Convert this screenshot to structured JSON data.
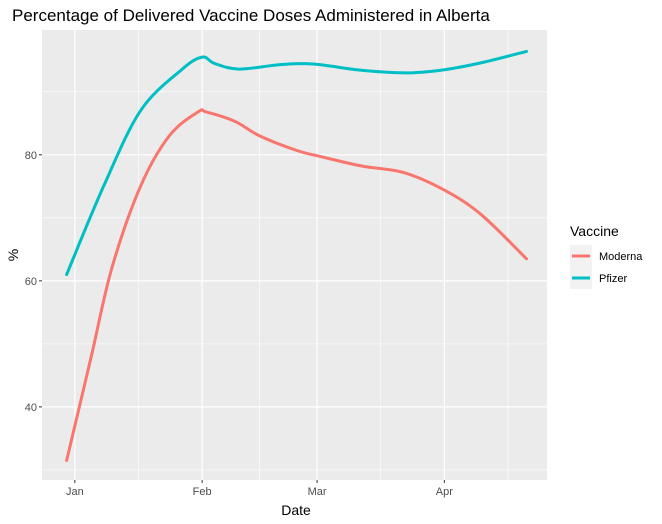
{
  "chart_data": {
    "type": "line",
    "title": "Percentage of Delivered Vaccine Doses Administered in Alberta",
    "xlabel": "Date",
    "ylabel": "%",
    "xlim": [
      "2020-12-24",
      "2021-04-26"
    ],
    "ylim": [
      28.4,
      99.8
    ],
    "x_ticks": [
      {
        "date": "2021-01-01",
        "label": "Jan"
      },
      {
        "date": "2021-02-01",
        "label": "Feb"
      },
      {
        "date": "2021-03-01",
        "label": "Mar"
      },
      {
        "date": "2021-04-01",
        "label": "Apr"
      }
    ],
    "y_ticks": [
      40,
      60,
      80
    ],
    "grid": true,
    "legend": {
      "title": "Vaccine",
      "position": "right"
    },
    "series": [
      {
        "name": "Moderna",
        "color": "#F8766D",
        "x": [
          "2020-12-30",
          "2021-01-05",
          "2021-01-10",
          "2021-01-17",
          "2021-01-24",
          "2021-01-31",
          "2021-02-02",
          "2021-02-09",
          "2021-02-15",
          "2021-02-24",
          "2021-03-02",
          "2021-03-12",
          "2021-03-22",
          "2021-04-01",
          "2021-04-10",
          "2021-04-21"
        ],
        "y": [
          31.5,
          48,
          62,
          75,
          83,
          86.8,
          86.8,
          85.3,
          83,
          80.7,
          79.7,
          78.2,
          77.2,
          74.4,
          70.5,
          63.5
        ]
      },
      {
        "name": "Pfizer",
        "color": "#00BFC4",
        "x": [
          "2020-12-30",
          "2021-01-08",
          "2021-01-17",
          "2021-01-27",
          "2021-02-01",
          "2021-02-04",
          "2021-02-10",
          "2021-02-20",
          "2021-02-28",
          "2021-03-12",
          "2021-03-23",
          "2021-04-01",
          "2021-04-10",
          "2021-04-21"
        ],
        "y": [
          61,
          75,
          87,
          93.5,
          95.5,
          94.5,
          93.6,
          94.3,
          94.4,
          93.4,
          93.0,
          93.5,
          94.6,
          96.4
        ]
      }
    ]
  }
}
